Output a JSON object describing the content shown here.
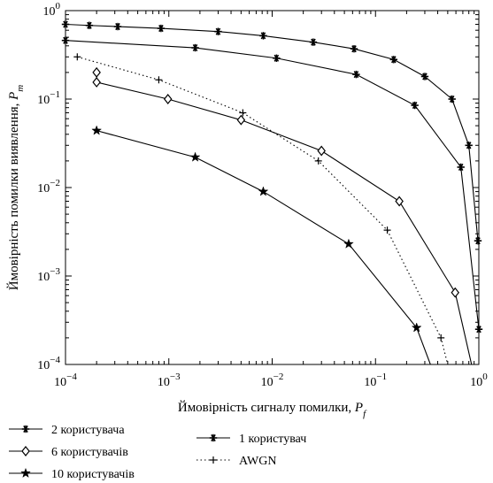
{
  "chart_data": {
    "type": "line",
    "xscale": "log",
    "yscale": "log",
    "xlim": [
      0.0001,
      1
    ],
    "ylim": [
      0.0001,
      1
    ],
    "xlabel": "Ймовірність сигналу помилки, ",
    "xlabel_symbol": "Pf",
    "ylabel": "Ймовірність помилки виявлення, ",
    "ylabel_symbol": "Pm",
    "x_ticks": [
      {
        "value": 0.0001,
        "base": "10",
        "exp": "−4"
      },
      {
        "value": 0.001,
        "base": "10",
        "exp": "−3"
      },
      {
        "value": 0.01,
        "base": "10",
        "exp": "−2"
      },
      {
        "value": 0.1,
        "base": "10",
        "exp": "−1"
      },
      {
        "value": 1,
        "base": "10",
        "exp": "0"
      }
    ],
    "y_ticks": [
      {
        "value": 0.0001,
        "base": "10",
        "exp": "−4"
      },
      {
        "value": 0.001,
        "base": "10",
        "exp": "−3"
      },
      {
        "value": 0.01,
        "base": "10",
        "exp": "−2"
      },
      {
        "value": 0.1,
        "base": "10",
        "exp": "−1"
      },
      {
        "value": 1,
        "base": "10",
        "exp": "0"
      }
    ],
    "grid": false,
    "series": [
      {
        "name": "2 користувача",
        "marker": "asterisk",
        "line": "solid",
        "x": [
          0.0001,
          0.00017,
          0.00032,
          0.00084,
          0.003,
          0.0082,
          0.025,
          0.062,
          0.15,
          0.3,
          0.55,
          0.8,
          0.98
        ],
        "y": [
          0.7,
          0.68,
          0.66,
          0.63,
          0.58,
          0.52,
          0.44,
          0.37,
          0.28,
          0.18,
          0.1,
          0.03,
          0.0025
        ]
      },
      {
        "name": "6 користувачів",
        "marker": "diamond",
        "line": "solid",
        "x": [
          0.0002,
          0.0002,
          0.00098,
          0.005,
          0.03,
          0.17,
          0.59,
          0.85
        ],
        "y": [
          0.2,
          0.155,
          0.1,
          0.058,
          0.026,
          0.007,
          0.00065,
          0.0001
        ]
      },
      {
        "name": "10 користувачів",
        "marker": "star",
        "line": "solid",
        "x": [
          0.0002,
          0.0018,
          0.0082,
          0.055,
          0.25,
          0.34
        ],
        "y": [
          0.044,
          0.022,
          0.009,
          0.0023,
          0.00026,
          0.0001
        ]
      },
      {
        "name": "1 користувач",
        "marker": "asterisk",
        "line": "solid",
        "x": [
          0.0001,
          0.0018,
          0.011,
          0.065,
          0.24,
          0.67,
          1.0
        ],
        "y": [
          0.46,
          0.38,
          0.29,
          0.19,
          0.085,
          0.017,
          0.00025
        ]
      },
      {
        "name": "AWGN",
        "marker": "plus",
        "line": "dotted",
        "x": [
          0.00013,
          0.0008,
          0.0052,
          0.028,
          0.13,
          0.43,
          0.5
        ],
        "y": [
          0.3,
          0.165,
          0.07,
          0.02,
          0.0033,
          0.0002,
          0.0001
        ]
      }
    ],
    "legend": [
      {
        "label": "2 користувача",
        "series": 0
      },
      {
        "label": "6 користувачів",
        "series": 1
      },
      {
        "label": "10 користувачів",
        "series": 2
      },
      {
        "label": "1 користувач",
        "series": 3
      },
      {
        "label": "AWGN",
        "series": 4
      }
    ],
    "legend_placement": "below"
  }
}
